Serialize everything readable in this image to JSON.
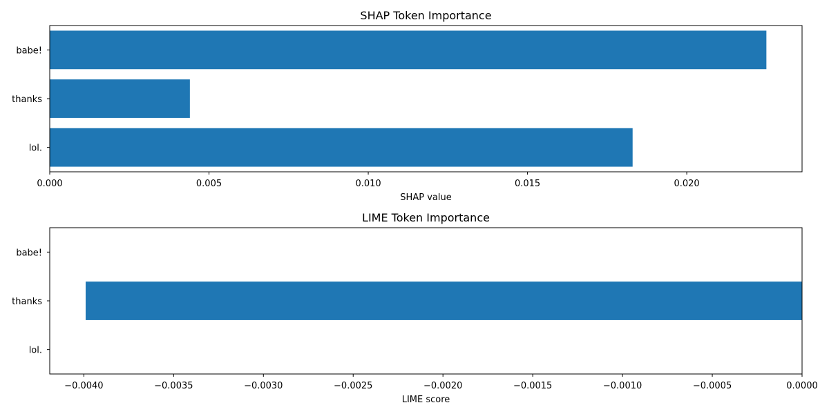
{
  "chart_data": [
    {
      "type": "bar",
      "orientation": "horizontal",
      "title": "SHAP Token Importance",
      "xlabel": "SHAP value",
      "ylabel": "",
      "categories": [
        "babe!",
        "thanks",
        "lol."
      ],
      "values": [
        0.0225,
        0.0044,
        0.0183
      ],
      "xlim": [
        0.0,
        0.02362
      ],
      "xticks": [
        0.0,
        0.005,
        0.01,
        0.015,
        0.02
      ],
      "xtick_labels": [
        "0.000",
        "0.005",
        "0.010",
        "0.015",
        "0.020"
      ],
      "bar_color": "#1f77b4",
      "grid": false
    },
    {
      "type": "bar",
      "orientation": "horizontal",
      "title": "LIME Token Importance",
      "xlabel": "LIME score",
      "ylabel": "",
      "categories": [
        "babe!",
        "thanks",
        "lol."
      ],
      "values": [
        0.0,
        -0.00399,
        0.0
      ],
      "xlim": [
        -0.00419,
        0.0
      ],
      "xticks": [
        -0.004,
        -0.0035,
        -0.003,
        -0.0025,
        -0.002,
        -0.0015,
        -0.001,
        -0.0005,
        0.0
      ],
      "xtick_labels": [
        "−0.0040",
        "−0.0035",
        "−0.0030",
        "−0.0025",
        "−0.0020",
        "−0.0015",
        "−0.0010",
        "−0.0005",
        "0.0000"
      ],
      "bar_color": "#1f77b4",
      "grid": false
    }
  ]
}
